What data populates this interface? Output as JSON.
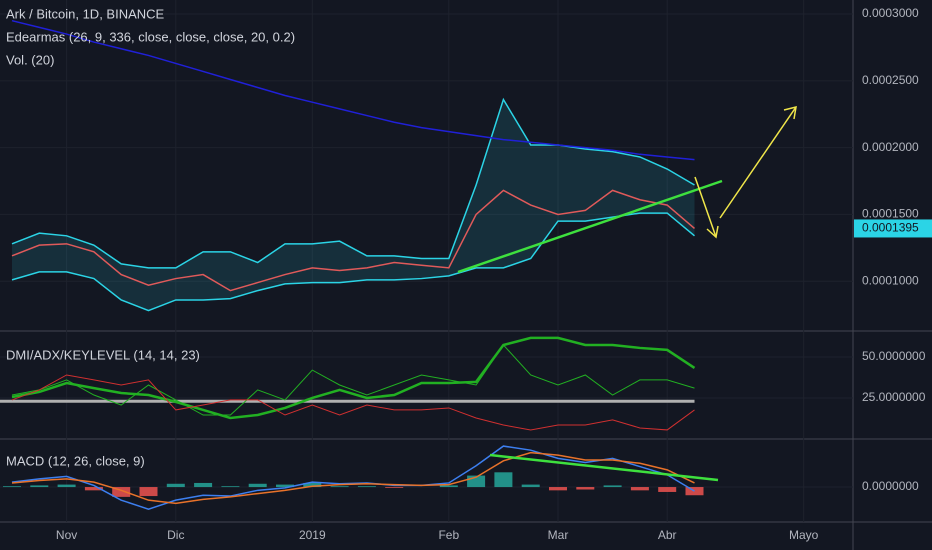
{
  "chart_data": [
    {
      "type": "line",
      "title": "Ark / Bitcoin, 1D, BINANCE",
      "indicators": [
        "Edearmas (26, 9, 336, close, close, close, 20, 0.2)",
        "Vol. (20)"
      ],
      "ylim": [
        6.5e-05,
        0.0003045
      ],
      "yticks": [
        {
          "value": 0.0003,
          "label": "0.0003000"
        },
        {
          "value": 0.00025,
          "label": "0.0002500"
        },
        {
          "value": 0.0002,
          "label": "0.0002000"
        },
        {
          "value": 0.00015,
          "label": "0.0001500"
        },
        {
          "value": 0.0001,
          "label": "0.0001000"
        }
      ],
      "grid": true,
      "series": [
        {
          "color": "#2bd4e6",
          "values": [
            0.000128,
            0.000136,
            0.000134,
            0.000127,
            0.000113,
            0.00011,
            0.00011,
            0.000122,
            0.000122,
            0.000114,
            0.000128,
            0.000128,
            0.00013,
            0.000119,
            0.000119,
            0.000117,
            0.000117,
            0.000172,
            0.000236,
            0.000202,
            0.000202,
            0.000199,
            0.000197,
            0.000193,
            0.000184,
            0.000172,
            null,
            null,
            null,
            null,
            null
          ]
        },
        {
          "color": "#2bd4e6",
          "values": [
            0.000101,
            0.000107,
            0.000107,
            0.000102,
            8.6e-05,
            7.8e-05,
            8.6e-05,
            8.6e-05,
            8.7e-05,
            9.3e-05,
            9.8e-05,
            9.9e-05,
            9.9e-05,
            0.000101,
            0.000101,
            0.000102,
            0.000104,
            0.00011,
            0.00011,
            0.000117,
            0.000145,
            0.000145,
            0.000148,
            0.000151,
            0.000151,
            0.000134,
            null,
            null,
            null,
            null,
            null
          ]
        },
        {
          "color": "#2020d8",
          "values": [
            0.000295,
            0.00029,
            0.000285,
            0.000279,
            0.000274,
            0.000269,
            0.000263,
            0.000257,
            0.000251,
            0.000245,
            0.000239,
            0.000234,
            0.000229,
            0.000224,
            0.000219,
            0.000215,
            0.000212,
            0.000209,
            0.000206,
            0.000204,
            0.000202,
            0.0002,
            0.000198,
            0.000195,
            0.000193,
            0.000191,
            null,
            null,
            null,
            null,
            null
          ]
        },
        {
          "color": "#e05a5a",
          "values": [
            0.000119,
            0.000127,
            0.000128,
            0.000122,
            0.000105,
            9.7e-05,
            0.000102,
            0.000105,
            9.3e-05,
            9.9e-05,
            0.000105,
            0.00011,
            0.000108,
            0.00011,
            0.000114,
            0.000112,
            0.00011,
            0.00015,
            0.000168,
            0.000157,
            0.00015,
            0.000153,
            0.000168,
            0.000161,
            0.000157,
            0.0001395,
            null,
            null,
            null,
            null,
            null
          ]
        }
      ]
    },
    {
      "type": "line",
      "title": "DMI/ADX/KEYLEVEL (14, 14, 23)",
      "ylim": [
        1.8,
        64
      ],
      "yticks": [
        {
          "value": 50,
          "label": "50.0000000"
        },
        {
          "value": 25,
          "label": "25.0000000"
        }
      ],
      "key_level": 23,
      "grid": true,
      "series": [
        {
          "color": "#22b022",
          "width": 2.5,
          "values": [
            25.6,
            28.7,
            34.1,
            31,
            28,
            26.8,
            22.6,
            17.7,
            12.8,
            14.6,
            18.9,
            25,
            29.9,
            25,
            26.8,
            34.1,
            34.1,
            34.8,
            57.3,
            61.6,
            61.6,
            57.3,
            57.3,
            55.5,
            54.3,
            43.3,
            null,
            null,
            null,
            null,
            null
          ]
        },
        {
          "color": "#22b022",
          "width": 1,
          "values": [
            26.8,
            29.9,
            36,
            26.8,
            20.7,
            32.9,
            23.8,
            14.6,
            14.6,
            29.9,
            23.8,
            42,
            32.9,
            26.8,
            32.9,
            39,
            36,
            32.9,
            57.3,
            39,
            32.9,
            39,
            26.8,
            36,
            36,
            31,
            null,
            null,
            null,
            null,
            null
          ]
        },
        {
          "color": "#d03030",
          "width": 1,
          "values": [
            23.8,
            29.9,
            39,
            36,
            32.9,
            36,
            17.7,
            20.7,
            23.8,
            23.8,
            14.6,
            20.7,
            14.6,
            20.7,
            17.7,
            17.7,
            18.9,
            12.8,
            8.5,
            5.5,
            8.5,
            8.5,
            11.6,
            6.7,
            5.5,
            17.7,
            null,
            null,
            null,
            null,
            null
          ]
        }
      ]
    },
    {
      "type": "line",
      "title": "MACD (12, 26, close, 9)",
      "ylim": [
        -5e-06,
        5.5e-06
      ],
      "yticks": [
        {
          "value": 0,
          "label": "0.0000000"
        }
      ],
      "grid": true,
      "categories": [
        null,
        null,
        "Nov",
        null,
        null,
        null,
        "Dic",
        null,
        null,
        null,
        null,
        "2019",
        null,
        null,
        null,
        null,
        "Feb",
        null,
        null,
        null,
        "Mar",
        null,
        null,
        null,
        "Abr",
        null,
        null,
        null,
        null,
        "Mayo",
        null
      ],
      "series": [
        {
          "type": "bar",
          "color_up": "#26a69a",
          "color_down": "#ef5350",
          "values": [
            1e-07,
            2e-07,
            3e-07,
            -4e-07,
            -1.2e-06,
            -1.1e-06,
            4e-07,
            5e-07,
            1e-07,
            4e-07,
            3e-07,
            5e-07,
            1e-07,
            1e-07,
            -1e-07,
            0,
            2e-07,
            1.4e-06,
            1.8e-06,
            3e-07,
            -4e-07,
            -3e-07,
            2e-07,
            -4e-07,
            -6e-07,
            -1e-06,
            null,
            null,
            null,
            null,
            null
          ]
        },
        {
          "color": "#3d7ff0",
          "values": [
            6e-07,
            1e-06,
            1.3e-06,
            2e-07,
            -1.6e-06,
            -2.7e-06,
            -1.6e-06,
            -1e-06,
            -1.1e-06,
            -4e-07,
            -1e-07,
            6e-07,
            4e-07,
            5e-07,
            2e-07,
            2e-07,
            5e-07,
            2.6e-06,
            5e-06,
            4.5e-06,
            3.5e-06,
            3e-06,
            3.5e-06,
            2.5e-06,
            1.5e-06,
            -5e-07,
            null,
            null,
            null,
            null,
            null
          ]
        },
        {
          "color": "#e8722a",
          "values": [
            5e-07,
            8e-07,
            1e-06,
            6e-07,
            -4e-07,
            -1.6e-06,
            -2e-06,
            -1.5e-06,
            -1.2e-06,
            -8e-07,
            -4e-07,
            1e-07,
            3e-07,
            4e-07,
            3e-07,
            2e-07,
            3e-07,
            1.2e-06,
            3.2e-06,
            4.2e-06,
            3.9e-06,
            3.3e-06,
            3.3e-06,
            2.9e-06,
            2.1e-06,
            5e-07,
            null,
            null,
            null,
            null,
            null
          ]
        }
      ]
    }
  ]
}
